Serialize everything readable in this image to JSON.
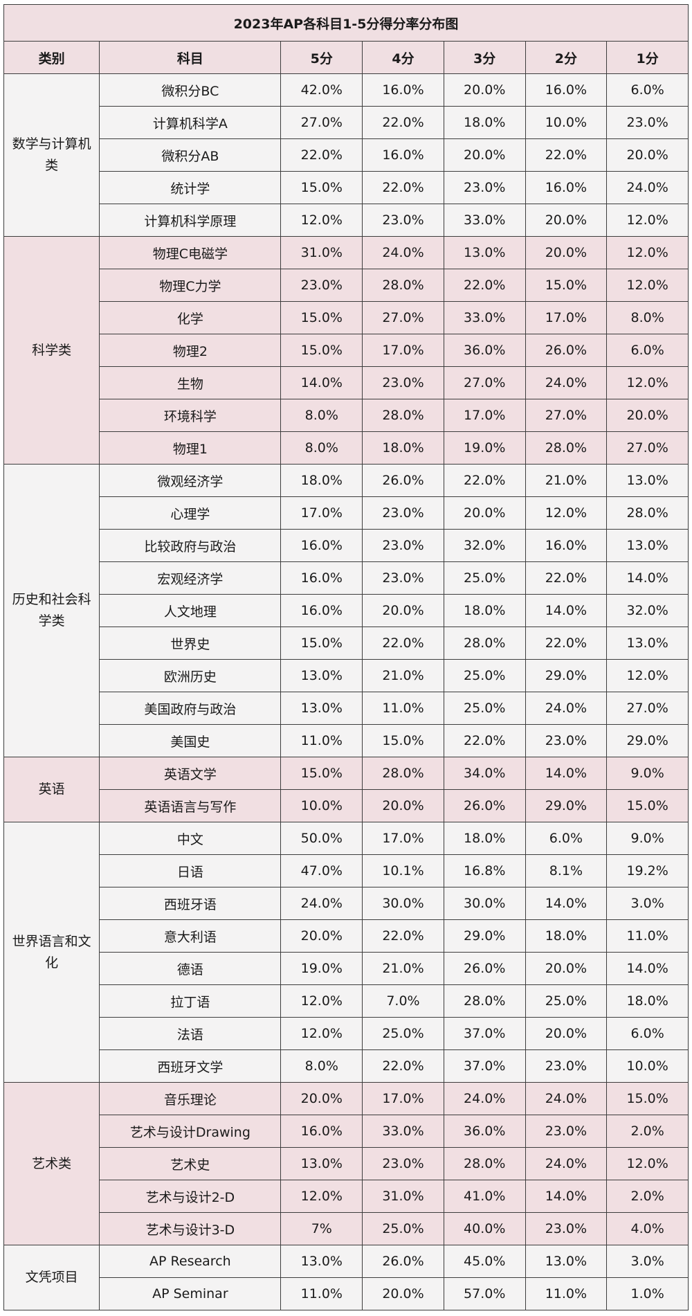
{
  "title": "2023年AP各科目1-5分得分率分布图",
  "headers": [
    "类别",
    "科目",
    "5分",
    "4分",
    "3分",
    "2分",
    "1分"
  ],
  "groups": [
    {
      "category": "数学与计算机类",
      "tint": "gray",
      "rows": [
        [
          "微积分BC",
          "42.0%",
          "16.0%",
          "20.0%",
          "16.0%",
          "6.0%"
        ],
        [
          "计算机科学A",
          "27.0%",
          "22.0%",
          "18.0%",
          "10.0%",
          "23.0%"
        ],
        [
          "微积分AB",
          "22.0%",
          "16.0%",
          "20.0%",
          "22.0%",
          "20.0%"
        ],
        [
          "统计学",
          "15.0%",
          "22.0%",
          "23.0%",
          "16.0%",
          "24.0%"
        ],
        [
          "计算机科学原理",
          "12.0%",
          "23.0%",
          "33.0%",
          "20.0%",
          "12.0%"
        ]
      ]
    },
    {
      "category": "科学类",
      "tint": "pink",
      "rows": [
        [
          "物理C电磁学",
          "31.0%",
          "24.0%",
          "13.0%",
          "20.0%",
          "12.0%"
        ],
        [
          "物理C力学",
          "23.0%",
          "28.0%",
          "22.0%",
          "15.0%",
          "12.0%"
        ],
        [
          "化学",
          "15.0%",
          "27.0%",
          "33.0%",
          "17.0%",
          "8.0%"
        ],
        [
          "物理2",
          "15.0%",
          "17.0%",
          "36.0%",
          "26.0%",
          "6.0%"
        ],
        [
          "生物",
          "14.0%",
          "23.0%",
          "27.0%",
          "24.0%",
          "12.0%"
        ],
        [
          "环境科学",
          "8.0%",
          "28.0%",
          "17.0%",
          "27.0%",
          "20.0%"
        ],
        [
          "物理1",
          "8.0%",
          "18.0%",
          "19.0%",
          "28.0%",
          "27.0%"
        ]
      ]
    },
    {
      "category": "历史和社会科学类",
      "tint": "gray",
      "rows": [
        [
          "微观经济学",
          "18.0%",
          "26.0%",
          "22.0%",
          "21.0%",
          "13.0%"
        ],
        [
          "心理学",
          "17.0%",
          "23.0%",
          "20.0%",
          "12.0%",
          "28.0%"
        ],
        [
          "比较政府与政治",
          "16.0%",
          "23.0%",
          "32.0%",
          "16.0%",
          "13.0%"
        ],
        [
          "宏观经济学",
          "16.0%",
          "23.0%",
          "25.0%",
          "22.0%",
          "14.0%"
        ],
        [
          "人文地理",
          "16.0%",
          "20.0%",
          "18.0%",
          "14.0%",
          "32.0%"
        ],
        [
          "世界史",
          "15.0%",
          "22.0%",
          "28.0%",
          "22.0%",
          "13.0%"
        ],
        [
          "欧洲历史",
          "13.0%",
          "21.0%",
          "25.0%",
          "29.0%",
          "12.0%"
        ],
        [
          "美国政府与政治",
          "13.0%",
          "11.0%",
          "25.0%",
          "24.0%",
          "27.0%"
        ],
        [
          "美国史",
          "11.0%",
          "15.0%",
          "22.0%",
          "23.0%",
          "29.0%"
        ]
      ]
    },
    {
      "category": "英语",
      "tint": "pink",
      "rows": [
        [
          "英语文学",
          "15.0%",
          "28.0%",
          "34.0%",
          "14.0%",
          "9.0%"
        ],
        [
          "英语语言与写作",
          "10.0%",
          "20.0%",
          "26.0%",
          "29.0%",
          "15.0%"
        ]
      ]
    },
    {
      "category": "世界语言和文化",
      "tint": "gray",
      "rows": [
        [
          "中文",
          "50.0%",
          "17.0%",
          "18.0%",
          "6.0%",
          "9.0%"
        ],
        [
          "日语",
          "47.0%",
          "10.1%",
          "16.8%",
          "8.1%",
          "19.2%"
        ],
        [
          "西班牙语",
          "24.0%",
          "30.0%",
          "30.0%",
          "14.0%",
          "3.0%"
        ],
        [
          "意大利语",
          "20.0%",
          "22.0%",
          "29.0%",
          "18.0%",
          "11.0%"
        ],
        [
          "德语",
          "19.0%",
          "21.0%",
          "26.0%",
          "20.0%",
          "14.0%"
        ],
        [
          "拉丁语",
          "12.0%",
          "7.0%",
          "28.0%",
          "25.0%",
          "18.0%"
        ],
        [
          "法语",
          "12.0%",
          "25.0%",
          "37.0%",
          "20.0%",
          "6.0%"
        ],
        [
          "西班牙文学",
          "8.0%",
          "22.0%",
          "37.0%",
          "23.0%",
          "10.0%"
        ]
      ]
    },
    {
      "category": "艺术类",
      "tint": "pink",
      "rows": [
        [
          "音乐理论",
          "20.0%",
          "17.0%",
          "24.0%",
          "24.0%",
          "15.0%"
        ],
        [
          "艺术与设计Drawing",
          "16.0%",
          "33.0%",
          "36.0%",
          "23.0%",
          "2.0%"
        ],
        [
          "艺术史",
          "13.0%",
          "23.0%",
          "28.0%",
          "24.0%",
          "12.0%"
        ],
        [
          "艺术与设计2-D",
          "12.0%",
          "31.0%",
          "41.0%",
          "14.0%",
          "2.0%"
        ],
        [
          "艺术与设计3-D",
          "7%",
          "25.0%",
          "40.0%",
          "23.0%",
          "4.0%"
        ]
      ]
    },
    {
      "category": "文凭项目",
      "tint": "gray",
      "rows": [
        [
          "AP Research",
          "13.0%",
          "26.0%",
          "45.0%",
          "13.0%",
          "3.0%"
        ],
        [
          "AP Seminar",
          "11.0%",
          "20.0%",
          "57.0%",
          "11.0%",
          "1.0%"
        ]
      ]
    }
  ]
}
